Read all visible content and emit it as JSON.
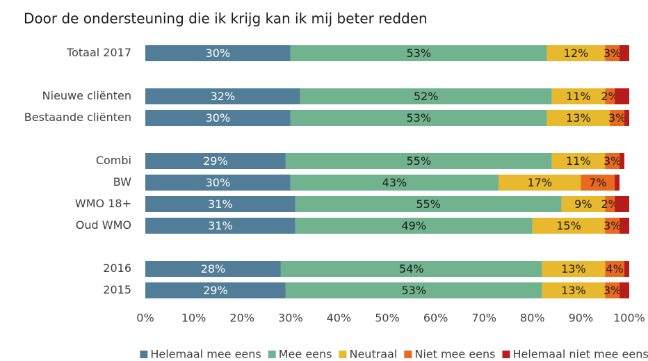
{
  "chart_data": {
    "type": "stacked_bar_horizontal",
    "title": "Door de ondersteuning die ik krijg kan ik mij beter redden",
    "categories": [
      "Totaal 2017",
      null,
      "Nieuwe cliënten",
      "Bestaande cliënten",
      null,
      "Combi",
      "BW",
      "WMO 18+",
      "Oud WMO",
      null,
      "2016",
      "2015"
    ],
    "series": [
      {
        "name": "Helemaal mee eens",
        "color": "#527d98",
        "values": [
          30,
          null,
          32,
          30,
          null,
          29,
          30,
          31,
          31,
          null,
          28,
          29
        ],
        "value_labels": [
          "30%",
          null,
          "32%",
          "30%",
          null,
          "29%",
          "30%",
          "31%",
          "31%",
          null,
          "28%",
          "29%"
        ]
      },
      {
        "name": "Mee eens",
        "color": "#70b38e",
        "values": [
          53,
          null,
          52,
          53,
          null,
          55,
          43,
          55,
          49,
          null,
          54,
          53
        ],
        "value_labels": [
          "53%",
          null,
          "52%",
          "53%",
          null,
          "55%",
          "43%",
          "55%",
          "49%",
          null,
          "54%",
          "53%"
        ]
      },
      {
        "name": "Neutraal",
        "color": "#e8b92e",
        "values": [
          12,
          null,
          11,
          13,
          null,
          11,
          17,
          9,
          15,
          null,
          13,
          13
        ],
        "value_labels": [
          "12%",
          null,
          "11%",
          "13%",
          null,
          "11%",
          "17%",
          "9%",
          "15%",
          null,
          "13%",
          "13%"
        ]
      },
      {
        "name": "Niet mee eens",
        "color": "#e96a1f",
        "values": [
          3,
          null,
          2,
          3,
          null,
          3,
          7,
          2,
          3,
          null,
          4,
          3
        ],
        "value_labels": [
          "3%",
          null,
          "2%",
          "3%",
          null,
          "3%",
          "7%",
          "2%",
          "3%",
          null,
          "4%",
          "3%"
        ]
      },
      {
        "name": "Helemaal niet mee eens",
        "color": "#b71c1c",
        "values": [
          2,
          null,
          3,
          1,
          null,
          1,
          1,
          3,
          2,
          null,
          1,
          2
        ]
      }
    ],
    "xlim": [
      0,
      100
    ],
    "xticks": [
      {
        "value": 0,
        "label": "0%"
      },
      {
        "value": 10,
        "label": "10%"
      },
      {
        "value": 20,
        "label": "20%"
      },
      {
        "value": 30,
        "label": "30%"
      },
      {
        "value": 40,
        "label": "40%"
      },
      {
        "value": 50,
        "label": "50%"
      },
      {
        "value": 60,
        "label": "60%"
      },
      {
        "value": 70,
        "label": "70%"
      },
      {
        "value": 80,
        "label": "80%"
      },
      {
        "value": 90,
        "label": "90%"
      },
      {
        "value": 100,
        "label": "100%"
      }
    ],
    "legend": "bottom"
  }
}
